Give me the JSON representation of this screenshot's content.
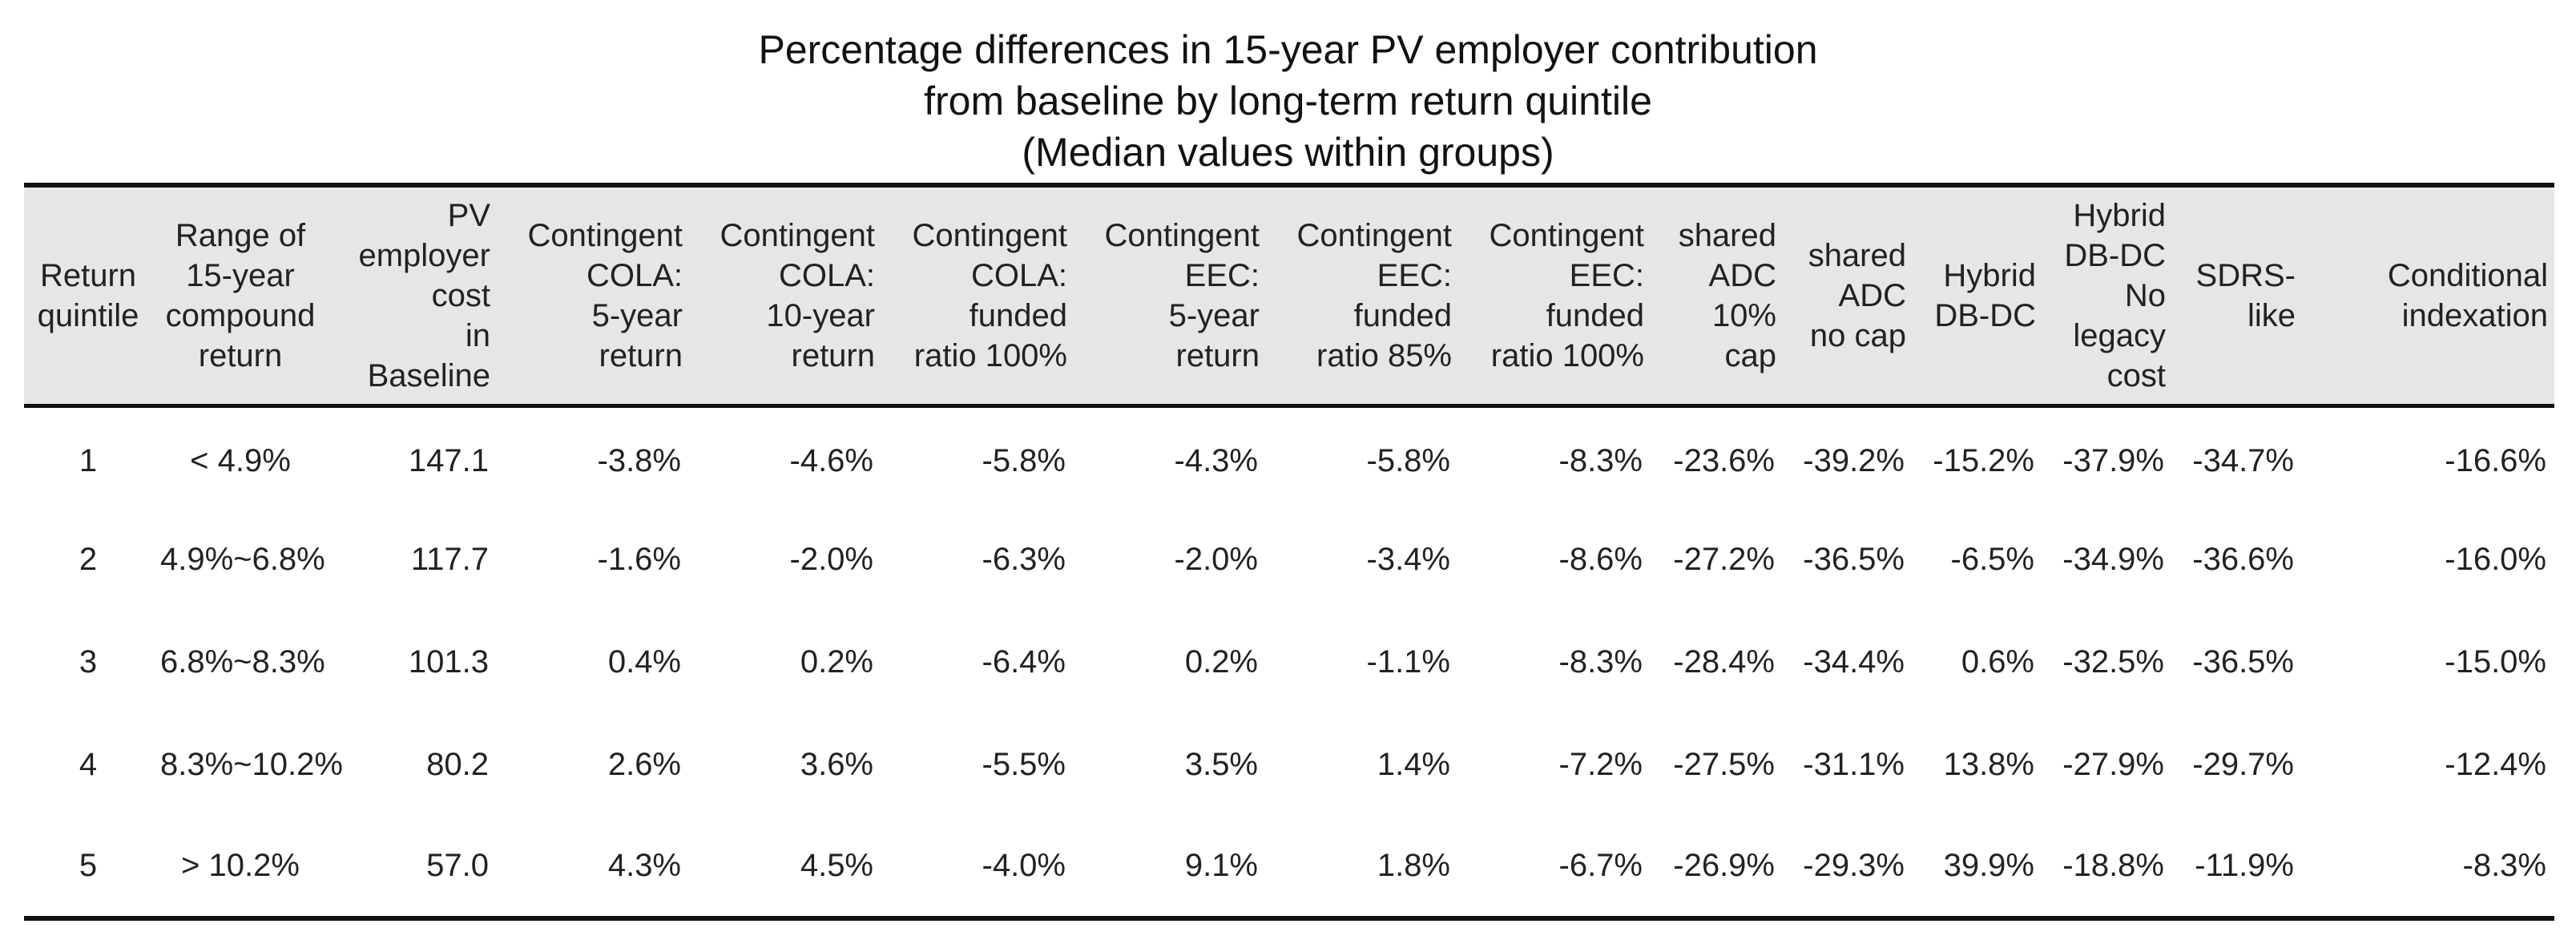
{
  "title_lines": [
    "Percentage differences in 15-year PV employer contribution",
    "from baseline by long-term return quintile",
    "(Median values within groups)"
  ],
  "chart_data": {
    "type": "table",
    "title": "Percentage differences in 15-year PV employer contribution from baseline by long-term return quintile (Median values within groups)",
    "columns": [
      {
        "key": "quintile",
        "label_lines": [
          "Return",
          "quintile"
        ],
        "align": "c"
      },
      {
        "key": "range",
        "label_lines": [
          "Range of",
          "15-year",
          "compound",
          "return"
        ],
        "align": "c"
      },
      {
        "key": "pv_baseline",
        "label_lines": [
          "PV",
          "employer",
          "cost",
          "in",
          "Baseline"
        ],
        "align": "r"
      },
      {
        "key": "cola_5yr",
        "label_lines": [
          "Contingent",
          "COLA:",
          "5-year",
          "return"
        ],
        "align": "r"
      },
      {
        "key": "cola_10yr",
        "label_lines": [
          "Contingent",
          "COLA:",
          "10-year",
          "return"
        ],
        "align": "r"
      },
      {
        "key": "cola_fr100",
        "label_lines": [
          "Contingent",
          "COLA:",
          "funded",
          "ratio 100%"
        ],
        "align": "r"
      },
      {
        "key": "eec_5yr",
        "label_lines": [
          "Contingent",
          "EEC:",
          "5-year",
          "return"
        ],
        "align": "r"
      },
      {
        "key": "eec_fr85",
        "label_lines": [
          "Contingent",
          "EEC:",
          "funded",
          "ratio 85%"
        ],
        "align": "r"
      },
      {
        "key": "eec_fr100",
        "label_lines": [
          "Contingent",
          "EEC:",
          "funded",
          "ratio 100%"
        ],
        "align": "r"
      },
      {
        "key": "adc_10cap",
        "label_lines": [
          "shared",
          "ADC",
          "10%",
          "cap"
        ],
        "align": "r"
      },
      {
        "key": "adc_nocap",
        "label_lines": [
          "shared",
          "ADC",
          "no cap"
        ],
        "align": "r"
      },
      {
        "key": "hybrid",
        "label_lines": [
          "Hybrid",
          "DB-DC"
        ],
        "align": "r"
      },
      {
        "key": "hybrid_nolegacy",
        "label_lines": [
          "Hybrid",
          "DB-DC",
          "No",
          "legacy",
          "cost"
        ],
        "align": "r"
      },
      {
        "key": "sdrs",
        "label_lines": [
          "SDRS-",
          "like"
        ],
        "align": "r"
      },
      {
        "key": "cond_index",
        "label_lines": [
          "Conditional",
          "indexation"
        ],
        "align": "r"
      }
    ],
    "rows": [
      [
        "1",
        "< 4.9%",
        "147.1",
        "-3.8%",
        "-4.6%",
        "-5.8%",
        "-4.3%",
        "-5.8%",
        "-8.3%",
        "-23.6%",
        "-39.2%",
        "-15.2%",
        "-37.9%",
        "-34.7%",
        "-16.6%"
      ],
      [
        "2",
        "4.9%~6.8%",
        "117.7",
        "-1.6%",
        "-2.0%",
        "-6.3%",
        "-2.0%",
        "-3.4%",
        "-8.6%",
        "-27.2%",
        "-36.5%",
        "-6.5%",
        "-34.9%",
        "-36.6%",
        "-16.0%"
      ],
      [
        "3",
        "6.8%~8.3%",
        "101.3",
        "0.4%",
        "0.2%",
        "-6.4%",
        "0.2%",
        "-1.1%",
        "-8.3%",
        "-28.4%",
        "-34.4%",
        "0.6%",
        "-32.5%",
        "-36.5%",
        "-15.0%"
      ],
      [
        "4",
        "8.3%~10.2%",
        "80.2",
        "2.6%",
        "3.6%",
        "-5.5%",
        "3.5%",
        "1.4%",
        "-7.2%",
        "-27.5%",
        "-31.1%",
        "13.8%",
        "-27.9%",
        "-29.7%",
        "-12.4%"
      ],
      [
        "5",
        "> 10.2%",
        "57.0",
        "4.3%",
        "4.5%",
        "-4.0%",
        "9.1%",
        "1.8%",
        "-6.7%",
        "-26.9%",
        "-29.3%",
        "39.9%",
        "-18.8%",
        "-11.9%",
        "-8.3%"
      ]
    ]
  }
}
